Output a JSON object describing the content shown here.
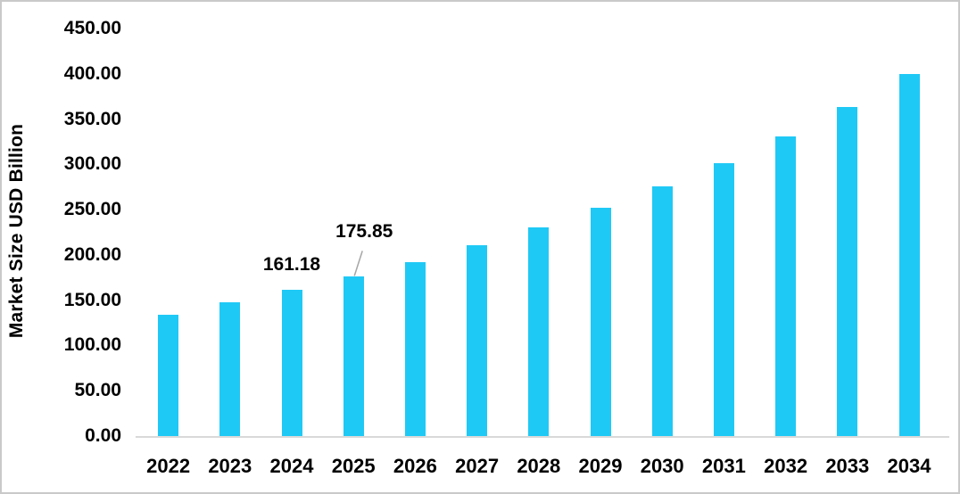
{
  "chart_data": {
    "type": "bar",
    "title": "",
    "xlabel": "",
    "ylabel": "Market Size USD Billion",
    "categories": [
      "2022",
      "2023",
      "2024",
      "2025",
      "2026",
      "2027",
      "2028",
      "2029",
      "2030",
      "2031",
      "2032",
      "2033",
      "2034"
    ],
    "values": [
      134.0,
      147.7,
      161.18,
      175.85,
      192.0,
      210.5,
      230.6,
      252.0,
      275.5,
      301.0,
      331.0,
      363.5,
      399.5
    ],
    "ylim": [
      0,
      450
    ],
    "ytick_step": 50,
    "yticks": [
      "0.00",
      "50.00",
      "100.00",
      "150.00",
      "200.00",
      "250.00",
      "300.00",
      "350.00",
      "400.00",
      "450.00"
    ],
    "grid": false,
    "legend": false,
    "bar_color": "#1fc9f6",
    "axis_line_color": "#d9d9d9",
    "leader_line_color": "#a6a6a6",
    "text_color": "#000000",
    "data_labels": [
      {
        "category": "2024",
        "text": "161.18",
        "leader_line": false
      },
      {
        "category": "2025",
        "text": "175.85",
        "leader_line": true
      }
    ]
  }
}
